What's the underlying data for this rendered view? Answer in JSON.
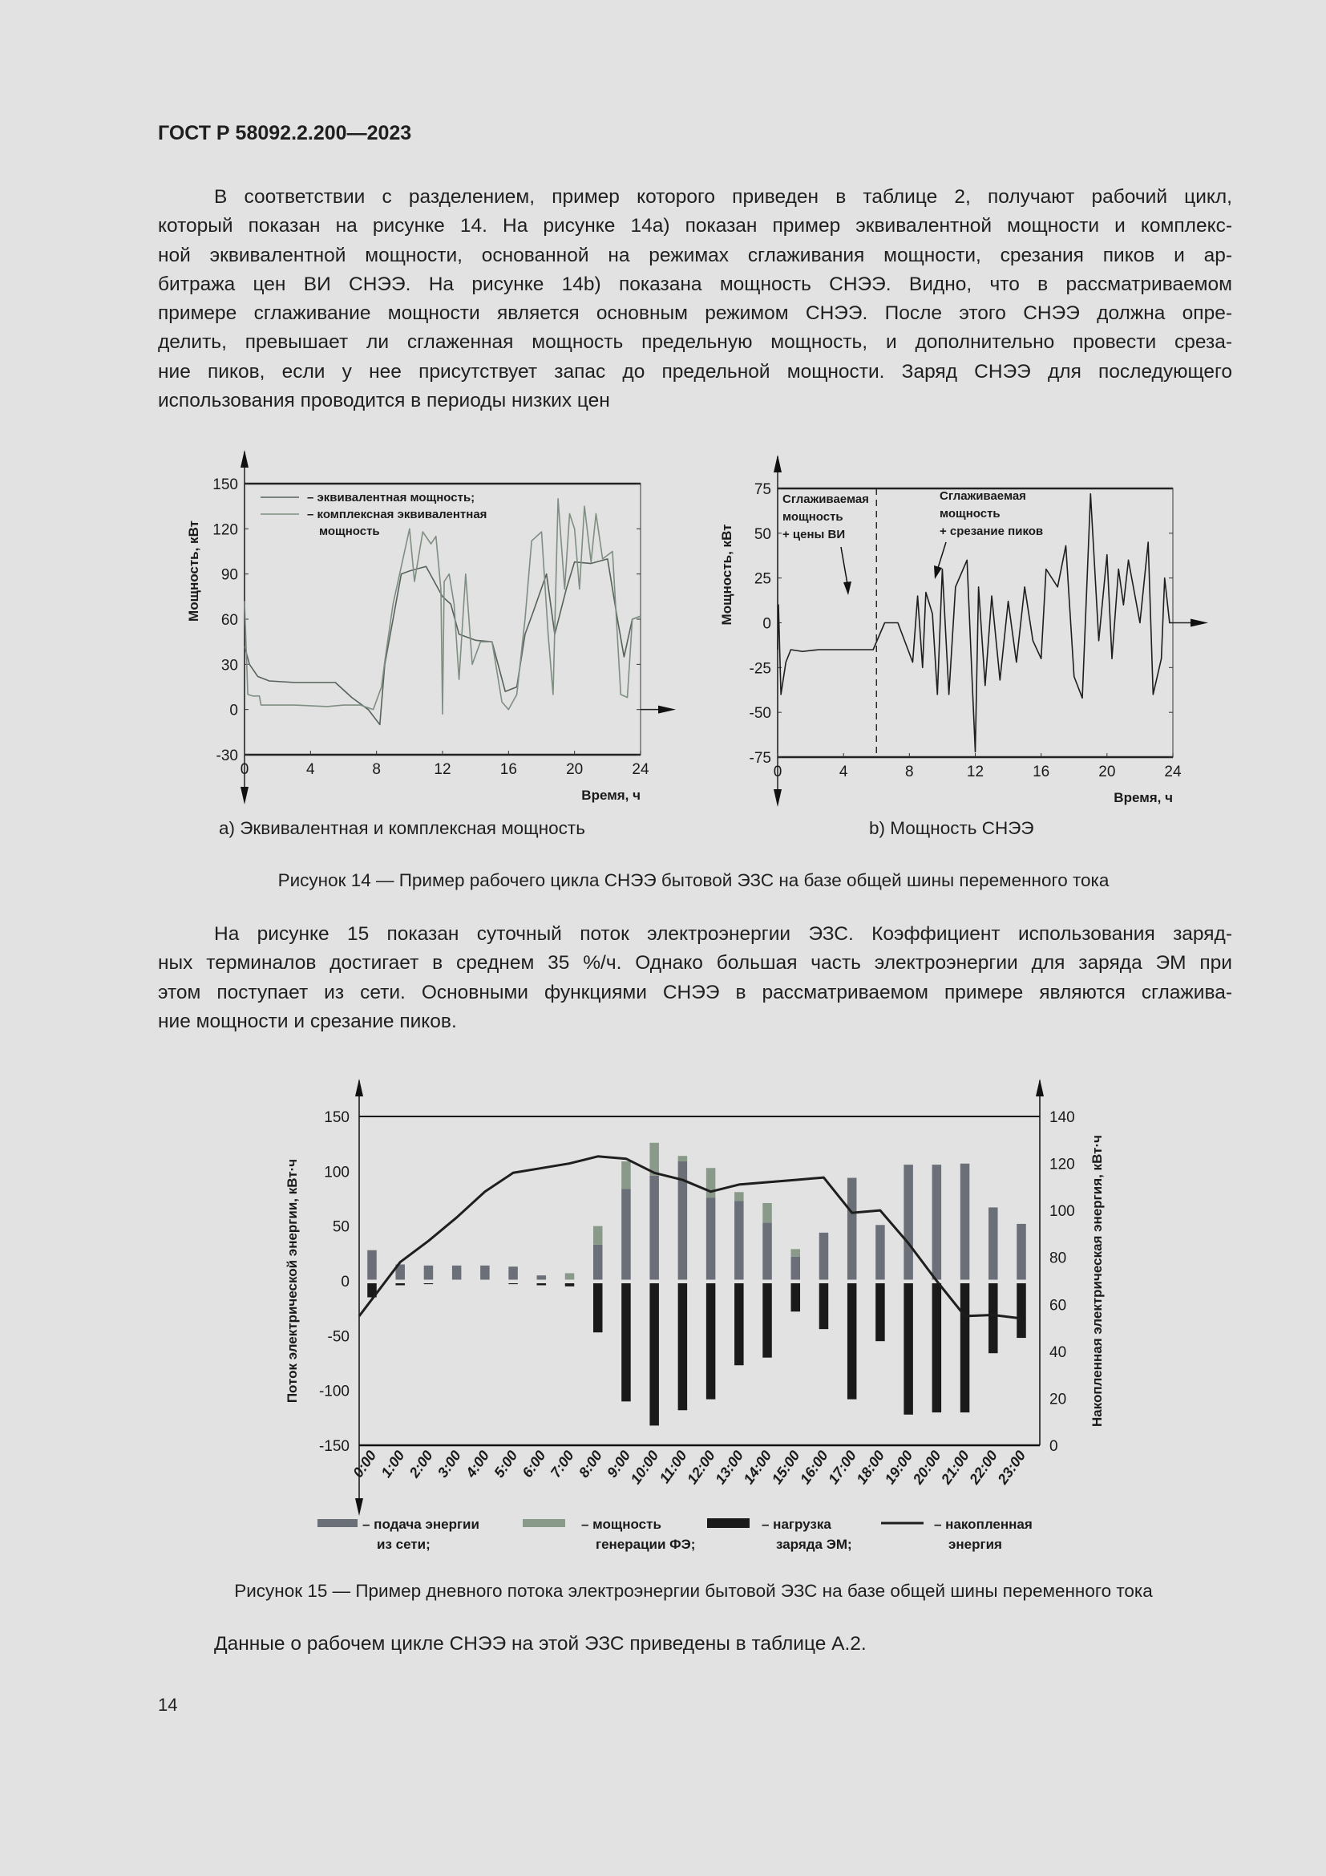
{
  "header": {
    "doc_id": "ГОСТ Р 58092.2.200—2023"
  },
  "paragraph1": [
    "В соответствии с разделением, пример которого приведен в таблице 2, получают рабочий цикл,",
    "который показан на рисунке 14. На рисунке 14а) показан пример эквивалентной мощности и комплекс-",
    "ной эквивалентной мощности, основанной на режимах сглаживания мощности, срезания пиков и ар-",
    "битража цен ВИ СНЭЭ. На рисунке 14b) показана мощность СНЭЭ. Видно, что в рассматриваемом",
    "примере сглаживание мощности является основным режимом СНЭЭ. После этого СНЭЭ должна опре-",
    "делить, превышает ли сглаженная мощность предельную мощность, и дополнительно провести среза-",
    "ние пиков, если у нее присутствует запас до предельной мощности. Заряд СНЭЭ для последующего",
    "использования проводится в периоды низких цен"
  ],
  "figure14": {
    "sub_a": "а)  Эквивалентная и комплексная мощность",
    "sub_b": "b)  Мощность СНЭЭ",
    "caption": "Рисунок 14 — Пример рабочего цикла СНЭЭ бытовой ЭЗС на базе общей шины переменного тока"
  },
  "paragraph2": [
    "На рисунке 15 показан суточный поток электроэнергии ЭЗС. Коэффициент использования заряд-",
    "ных терминалов достигает в среднем 35 %/ч. Однако большая часть электроэнергии для заряда ЭМ при",
    "этом поступает из сети. Основными функциями СНЭЭ в рассматриваемом примере являются сглажива-",
    "ние мощности и срезание пиков."
  ],
  "figure15": {
    "caption": "Рисунок 15 — Пример дневного потока электроэнергии бытовой ЭЗС на базе общей шины переменного тока"
  },
  "paragraph3": "Данные о рабочем цикле СНЭЭ на этой ЭЗС приведены в таблице А.2.",
  "page_number": "14",
  "chart_data": [
    {
      "type": "line",
      "xlabel": "Время, ч",
      "ylabel": "Мощность, кВт",
      "xlim": [
        0,
        24
      ],
      "ylim": [
        -30,
        150
      ],
      "xticks": [
        "0",
        "4",
        "8",
        "12",
        "16",
        "20",
        "24"
      ],
      "yticks": [
        "-30",
        "0",
        "30",
        "60",
        "90",
        "120",
        "150"
      ],
      "grid": false,
      "legend": {
        "placement": "top-left",
        "lines": [
          "– эквивалентная мощность;",
          "– комплексная эквивалентная",
          "мощность"
        ]
      },
      "series": [
        {
          "name": "эквивалентная мощность",
          "color": "#56625a",
          "points": [
            [
              0,
              42
            ],
            [
              0.3,
              30
            ],
            [
              0.8,
              22
            ],
            [
              1.5,
              19
            ],
            [
              3,
              18
            ],
            [
              5.5,
              18
            ],
            [
              6.5,
              8
            ],
            [
              7.5,
              0
            ],
            [
              8.2,
              -10
            ],
            [
              8.5,
              30
            ],
            [
              9,
              60
            ],
            [
              9.5,
              90
            ],
            [
              10,
              92
            ],
            [
              11,
              95
            ],
            [
              12,
              75
            ],
            [
              12.5,
              70
            ],
            [
              13,
              50
            ],
            [
              14,
              46
            ],
            [
              15,
              45
            ],
            [
              15.8,
              12
            ],
            [
              16.5,
              15
            ],
            [
              17,
              50
            ],
            [
              17.5,
              65
            ],
            [
              18.3,
              90
            ],
            [
              18.8,
              50
            ],
            [
              19.5,
              80
            ],
            [
              20,
              98
            ],
            [
              21,
              97
            ],
            [
              22,
              100
            ],
            [
              22.6,
              60
            ],
            [
              23,
              35
            ],
            [
              23.5,
              60
            ],
            [
              24,
              62
            ]
          ]
        },
        {
          "name": "комплексная эквивалентная мощность",
          "color": "#7f8e82",
          "points": [
            [
              0,
              72
            ],
            [
              0.2,
              10
            ],
            [
              0.5,
              9
            ],
            [
              0.9,
              9
            ],
            [
              1,
              3
            ],
            [
              3,
              3
            ],
            [
              5,
              2
            ],
            [
              6,
              3
            ],
            [
              7,
              3
            ],
            [
              7.8,
              0
            ],
            [
              8.3,
              15
            ],
            [
              8.5,
              32
            ],
            [
              9,
              70
            ],
            [
              9.5,
              95
            ],
            [
              10,
              120
            ],
            [
              10.3,
              85
            ],
            [
              10.8,
              118
            ],
            [
              11.3,
              110
            ],
            [
              11.6,
              115
            ],
            [
              11.9,
              80
            ],
            [
              12,
              -3
            ],
            [
              12.1,
              85
            ],
            [
              12.4,
              90
            ],
            [
              12.7,
              70
            ],
            [
              13,
              20
            ],
            [
              13.4,
              90
            ],
            [
              13.8,
              30
            ],
            [
              14.3,
              45
            ],
            [
              15,
              45
            ],
            [
              15.6,
              5
            ],
            [
              16,
              0
            ],
            [
              16.5,
              10
            ],
            [
              17,
              60
            ],
            [
              17.4,
              112
            ],
            [
              18,
              118
            ],
            [
              18.4,
              50
            ],
            [
              18.7,
              10
            ],
            [
              19,
              140
            ],
            [
              19.4,
              80
            ],
            [
              19.7,
              130
            ],
            [
              20,
              120
            ],
            [
              20.3,
              80
            ],
            [
              20.6,
              135
            ],
            [
              21,
              98
            ],
            [
              21.3,
              130
            ],
            [
              21.7,
              100
            ],
            [
              22.3,
              105
            ],
            [
              22.8,
              10
            ],
            [
              23.2,
              8
            ],
            [
              23.5,
              60
            ],
            [
              24,
              62
            ]
          ]
        }
      ]
    },
    {
      "type": "line",
      "xlabel": "Время, ч",
      "ylabel": "Мощность, кВт",
      "xlim": [
        0,
        24
      ],
      "ylim": [
        -75,
        75
      ],
      "xticks": [
        "0",
        "4",
        "8",
        "12",
        "16",
        "20",
        "24"
      ],
      "yticks": [
        "-75",
        "-50",
        "-25",
        "0",
        "25",
        "50",
        "75"
      ],
      "grid": false,
      "annotations": [
        {
          "lines": [
            "Сглаживаемая",
            "мощность",
            "+ цены ВИ"
          ]
        },
        {
          "lines": [
            "Сглаживаемая",
            "мощность",
            "+ срезание пиков"
          ]
        }
      ],
      "divider_x": 6,
      "series": [
        {
          "color": "#1e1e1e",
          "points": [
            [
              0,
              -15
            ],
            [
              0.05,
              10
            ],
            [
              0.2,
              -40
            ],
            [
              0.5,
              -22
            ],
            [
              0.8,
              -15
            ],
            [
              1.5,
              -16
            ],
            [
              2.5,
              -15
            ],
            [
              4,
              -15
            ],
            [
              5.8,
              -15
            ],
            [
              6.5,
              0
            ],
            [
              7.3,
              0
            ],
            [
              8.2,
              -22
            ],
            [
              8.5,
              15
            ],
            [
              8.8,
              -25
            ],
            [
              9,
              17
            ],
            [
              9.4,
              5
            ],
            [
              9.7,
              -40
            ],
            [
              10,
              30
            ],
            [
              10.4,
              -40
            ],
            [
              10.8,
              20
            ],
            [
              11.5,
              35
            ],
            [
              11.8,
              -30
            ],
            [
              12,
              -72
            ],
            [
              12.2,
              20
            ],
            [
              12.6,
              -35
            ],
            [
              13,
              15
            ],
            [
              13.5,
              -32
            ],
            [
              14,
              12
            ],
            [
              14.5,
              -22
            ],
            [
              15,
              20
            ],
            [
              15.5,
              -10
            ],
            [
              16,
              -20
            ],
            [
              16.3,
              30
            ],
            [
              17,
              20
            ],
            [
              17.5,
              43
            ],
            [
              18,
              -30
            ],
            [
              18.5,
              -42
            ],
            [
              19,
              72
            ],
            [
              19.5,
              -10
            ],
            [
              20,
              38
            ],
            [
              20.3,
              -20
            ],
            [
              20.7,
              30
            ],
            [
              21,
              10
            ],
            [
              21.3,
              35
            ],
            [
              22,
              0
            ],
            [
              22.5,
              45
            ],
            [
              22.8,
              -40
            ],
            [
              23.3,
              -20
            ],
            [
              23.5,
              25
            ],
            [
              23.8,
              0
            ],
            [
              24,
              0
            ]
          ]
        }
      ]
    },
    {
      "type": "bar+line",
      "ylabel": "Поток электрической энергии, кВт·ч",
      "y2label": "Накопленная электрическая энергия, кВт·ч",
      "ylim": [
        -150,
        150
      ],
      "y2lim": [
        0,
        140
      ],
      "yticks": [
        "-150",
        "-100",
        "-50",
        "0",
        "50",
        "100",
        "150"
      ],
      "y2ticks": [
        "0",
        "20",
        "40",
        "60",
        "80",
        "100",
        "120",
        "140"
      ],
      "grid": false,
      "categories": [
        "0:00",
        "1:00",
        "2:00",
        "3:00",
        "4:00",
        "5:00",
        "6:00",
        "7:00",
        "8:00",
        "9:00",
        "10:00",
        "11:00",
        "12:00",
        "13:00",
        "14:00",
        "15:00",
        "16:00",
        "17:00",
        "18:00",
        "19:00",
        "20:00",
        "21:00",
        "22:00",
        "23:00"
      ],
      "series": [
        {
          "name": "подача энергии из сети",
          "color": "#6b6f78",
          "values": [
            28,
            15,
            14,
            14,
            14,
            13,
            5,
            0,
            33,
            84,
            96,
            109,
            76,
            73,
            53,
            22,
            44,
            94,
            51,
            106,
            106,
            107,
            67,
            52
          ]
        },
        {
          "name": "мощность генерации ФЭ",
          "color": "#8a9a8a",
          "values": [
            0,
            0,
            0,
            0,
            0,
            0,
            0,
            7,
            17,
            25,
            30,
            5,
            27,
            8,
            18,
            7,
            0,
            0,
            0,
            0,
            0,
            0,
            0,
            0
          ]
        },
        {
          "name": "нагрузка заряда ЭМ",
          "color": "#1a1a1a",
          "values": [
            -15,
            -4,
            -3,
            -2,
            -2,
            -3,
            -4,
            -5,
            -47,
            -110,
            -132,
            -118,
            -108,
            -77,
            -70,
            -28,
            -44,
            -108,
            -55,
            -122,
            -120,
            -120,
            -66,
            -52
          ]
        },
        {
          "name": "накопленная энергия",
          "color": "#1e1e1e",
          "axis": "right",
          "values": [
            62,
            78,
            87,
            97,
            108,
            116,
            118,
            120,
            123,
            122,
            116,
            113,
            108,
            111,
            112,
            113,
            114,
            99,
            100,
            86,
            70,
            55,
            55.5,
            54
          ]
        }
      ],
      "legend": [
        {
          "line1": "– подача энергии",
          "line2": "из сети;"
        },
        {
          "line1": "– мощность",
          "line2": "генерации ФЭ;"
        },
        {
          "line1": "– нагрузка",
          "line2": "заряда ЭМ;"
        },
        {
          "line1": "– накопленная",
          "line2": "энергия"
        }
      ]
    }
  ]
}
